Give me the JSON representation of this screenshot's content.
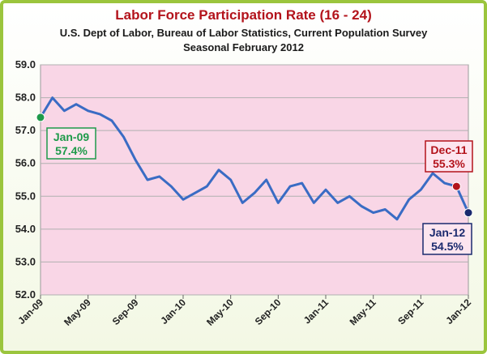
{
  "chart_data": {
    "type": "line",
    "title": "Labor Force Participation Rate  (16 - 24)",
    "subtitle_lines": [
      "U.S. Dept of Labor, Bureau of Labor Statistics, Current Population Survey",
      "Seasonal February 2012"
    ],
    "xlabel": "",
    "ylabel": "",
    "ylim": [
      52.0,
      59.0
    ],
    "ystep": 1.0,
    "y_ticks": [
      "52.0",
      "53.0",
      "54.0",
      "55.0",
      "56.0",
      "57.0",
      "58.0",
      "59.0"
    ],
    "x_tick_labels": [
      "Jan-09",
      "May-09",
      "Sep-09",
      "Jan-10",
      "May-10",
      "Sep-10",
      "Jan-11",
      "May-11",
      "Sep-11",
      "Jan-12"
    ],
    "x_tick_every": 4,
    "grid": true,
    "series": [
      {
        "months": [
          "Jan-09",
          "Feb-09",
          "Mar-09",
          "Apr-09",
          "May-09",
          "Jun-09",
          "Jul-09",
          "Aug-09",
          "Sep-09",
          "Oct-09",
          "Nov-09",
          "Dec-09",
          "Jan-10",
          "Feb-10",
          "Mar-10",
          "Apr-10",
          "May-10",
          "Jun-10",
          "Jul-10",
          "Aug-10",
          "Sep-10",
          "Oct-10",
          "Nov-10",
          "Dec-10",
          "Jan-11",
          "Feb-11",
          "Mar-11",
          "Apr-11",
          "May-11",
          "Jun-11",
          "Jul-11",
          "Aug-11",
          "Sep-11",
          "Oct-11",
          "Nov-11",
          "Dec-11",
          "Jan-12"
        ],
        "values": [
          57.4,
          58.0,
          57.6,
          57.8,
          57.6,
          57.5,
          57.3,
          56.8,
          56.1,
          55.5,
          55.6,
          55.3,
          54.9,
          55.1,
          55.3,
          55.8,
          55.5,
          54.8,
          55.1,
          55.5,
          54.8,
          55.3,
          55.4,
          54.8,
          55.2,
          54.8,
          55.0,
          54.7,
          54.5,
          54.6,
          54.3,
          54.9,
          55.2,
          55.7,
          55.4,
          55.3,
          54.5
        ],
        "color": "#3a6cc4"
      }
    ],
    "annotations": [
      {
        "label": "Jan-09",
        "value": "57.4%",
        "index": 0,
        "color": "#1e9a4a"
      },
      {
        "label": "Dec-11",
        "value": "55.3%",
        "index": 35,
        "color": "#b3131b"
      },
      {
        "label": "Jan-12",
        "value": "54.5%",
        "index": 36,
        "color": "#1a2a6e"
      }
    ],
    "plot_background": "#f9d6e6",
    "frame_color": "#9bc53d"
  }
}
